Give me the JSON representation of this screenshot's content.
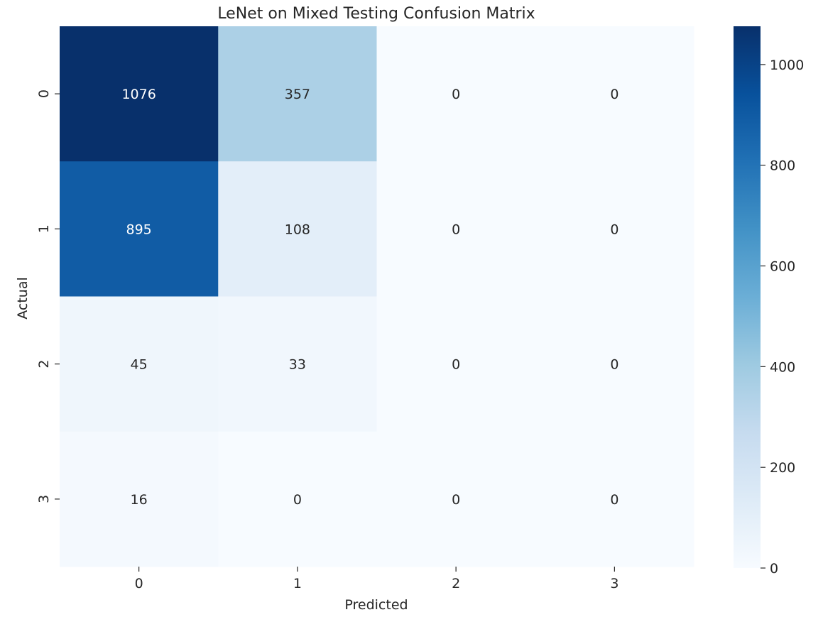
{
  "chart_data": {
    "type": "heatmap",
    "title": "LeNet on Mixed Testing Confusion Matrix",
    "xlabel": "Predicted",
    "ylabel": "Actual",
    "x_categories": [
      "0",
      "1",
      "2",
      "3"
    ],
    "y_categories": [
      "0",
      "1",
      "2",
      "3"
    ],
    "values": [
      [
        1076,
        357,
        0,
        0
      ],
      [
        895,
        108,
        0,
        0
      ],
      [
        45,
        33,
        0,
        0
      ],
      [
        16,
        0,
        0,
        0
      ]
    ],
    "colormap": "Blues",
    "colorbar": {
      "range": [
        0,
        1076
      ],
      "ticks": [
        0,
        200,
        400,
        600,
        800,
        1000
      ],
      "tick_labels": [
        "0",
        "200",
        "400",
        "600",
        "800",
        "1000"
      ]
    },
    "grid": false
  }
}
